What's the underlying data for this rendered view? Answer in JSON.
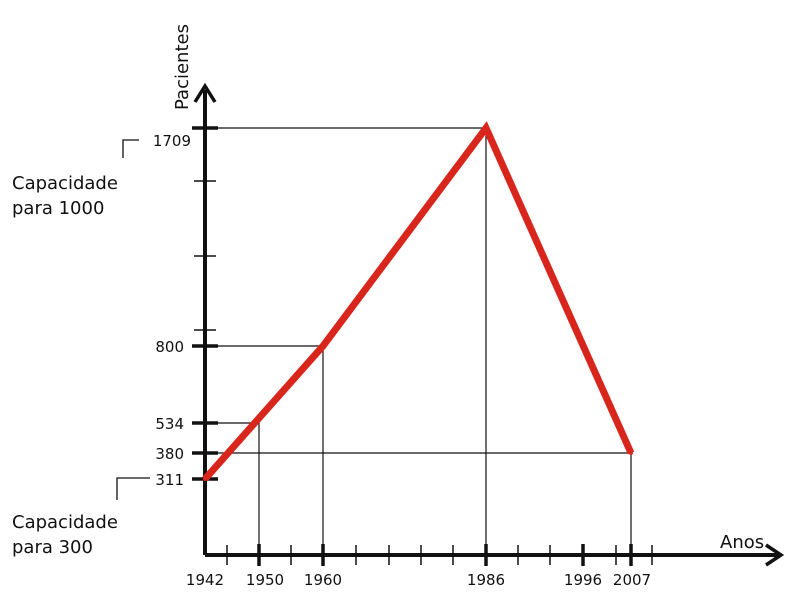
{
  "chart_data": {
    "type": "line",
    "title": "",
    "xlabel": "Anos",
    "ylabel": "Pacientes",
    "x_tick_labels": [
      "1942",
      "1950",
      "1960",
      "1986",
      "1996",
      "2007"
    ],
    "y_tick_labels": [
      "311",
      "380",
      "534",
      "800",
      "1709"
    ],
    "series": [
      {
        "x": [
          1942,
          1960,
          1986,
          2007
        ],
        "y": [
          311,
          800,
          1709,
          380
        ],
        "color": "#d9261c"
      }
    ],
    "guide_points": [
      {
        "x": 1950,
        "y": 534
      },
      {
        "x": 1960,
        "y": 800
      },
      {
        "x": 1986,
        "y": 1709
      },
      {
        "x": 2007,
        "y": 380
      }
    ],
    "annotations": [
      {
        "lines": [
          "Capacidade",
          "para 1000"
        ],
        "anchor_y": 1709
      },
      {
        "lines": [
          "Capacidade",
          "para 300"
        ],
        "anchor_y": 311
      }
    ],
    "grid": false,
    "legend": "none"
  }
}
